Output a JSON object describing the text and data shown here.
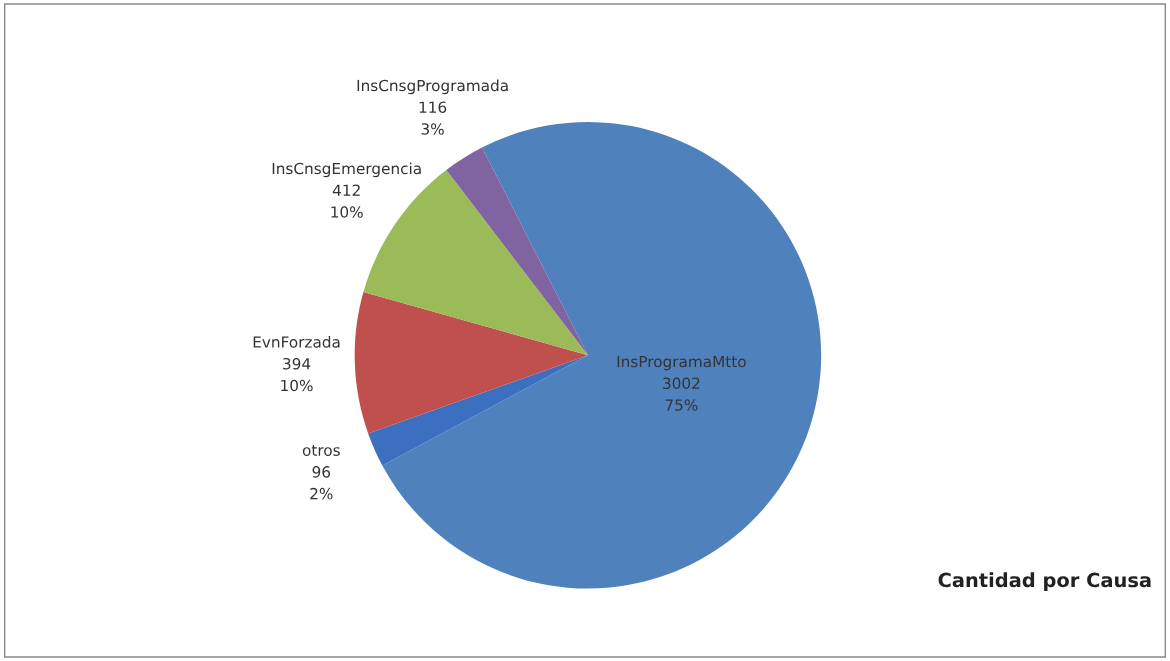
{
  "chart_data": {
    "type": "pie",
    "title": "Cantidad por Causa",
    "categories": [
      "InsProgramaMtto",
      "otros",
      "EvnForzada",
      "InsCnsgEmergencia",
      "InsCnsgProgramada"
    ],
    "values": [
      3002,
      96,
      394,
      412,
      116
    ],
    "value_labels": [
      "3002\n75%",
      "96\n2%",
      "394\n10%",
      "412\n10%",
      "116\n3%"
    ],
    "colors": [
      "#4f81bd",
      "#3c6fc0",
      "#c0504d",
      "#9bbb59",
      "#8064a2"
    ],
    "legend": false
  }
}
